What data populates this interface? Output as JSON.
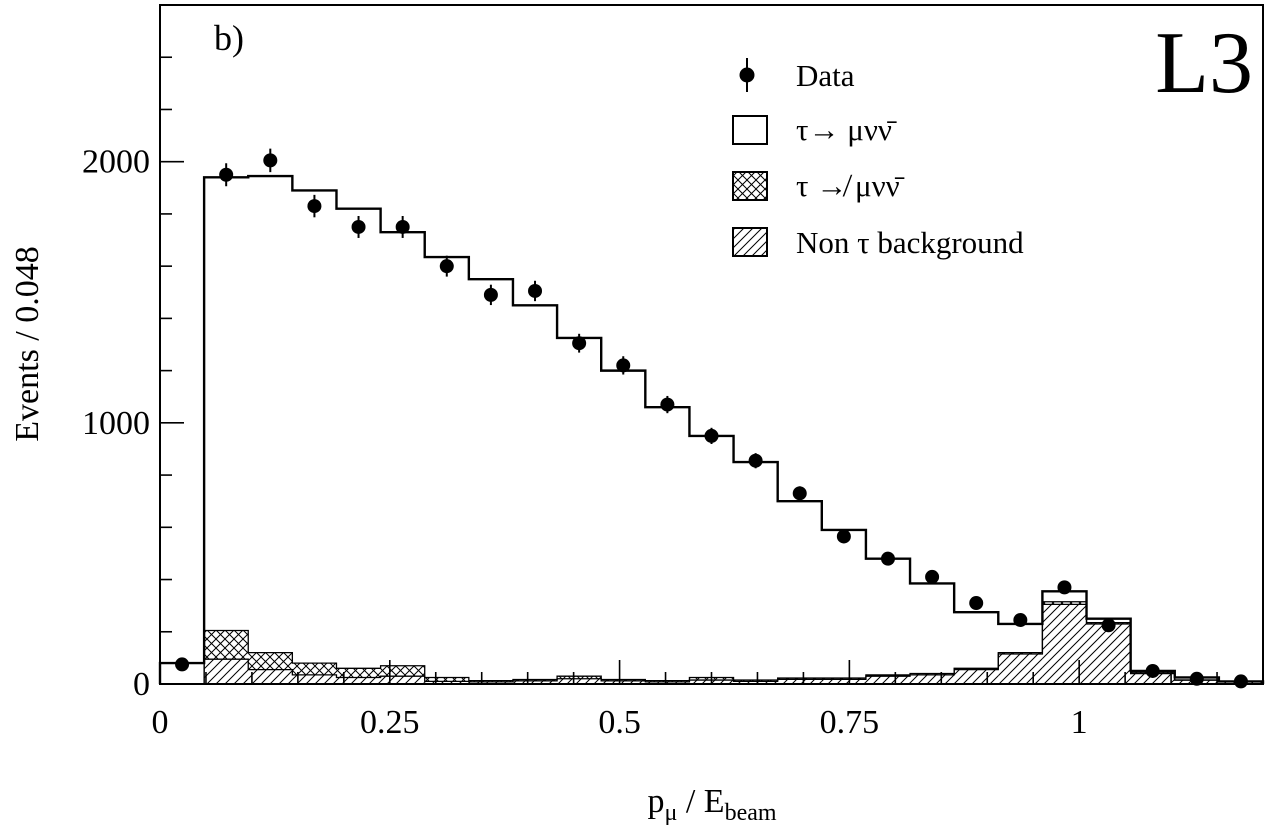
{
  "chart_data": {
    "type": "histogram",
    "panel_label": "b)",
    "experiment_label": "L3",
    "xlabel": {
      "base": "p",
      "base_sub": "μ",
      "sep": " / ",
      "denom": "E",
      "denom_sub": "beam"
    },
    "ylabel": "Events / 0.048",
    "xlim": [
      0,
      1.2
    ],
    "ylim": [
      0,
      2600
    ],
    "x_ticks": [
      {
        "value": 0,
        "label": "0"
      },
      {
        "value": 0.25,
        "label": "0.25"
      },
      {
        "value": 0.5,
        "label": "0.5"
      },
      {
        "value": 0.75,
        "label": "0.75"
      },
      {
        "value": 1,
        "label": "1"
      }
    ],
    "y_ticks": [
      {
        "value": 0,
        "label": "0"
      },
      {
        "value": 1000,
        "label": "1000"
      },
      {
        "value": 2000,
        "label": "2000"
      }
    ],
    "legend": {
      "placement": "top-right",
      "entries": [
        {
          "key": "data",
          "label": "Data"
        },
        {
          "key": "signal",
          "label": "τ→ μνν̄"
        },
        {
          "key": "tau_bg",
          "label": "τ ↛ μνν̄"
        },
        {
          "key": "non_tau_bg",
          "label": "Non τ background"
        }
      ]
    },
    "bin_width": 0.048,
    "bin_edges": [
      0,
      0.048,
      0.096,
      0.144,
      0.192,
      0.24,
      0.288,
      0.336,
      0.384,
      0.432,
      0.48,
      0.528,
      0.576,
      0.624,
      0.672,
      0.72,
      0.768,
      0.816,
      0.864,
      0.912,
      0.96,
      1.008,
      1.056,
      1.104,
      1.152,
      1.2
    ],
    "series": [
      {
        "key": "signal",
        "name": "τ→ μνν̄",
        "style": "outline",
        "values": [
          80,
          1940,
          1945,
          1890,
          1820,
          1730,
          1635,
          1550,
          1450,
          1325,
          1200,
          1060,
          950,
          850,
          700,
          590,
          480,
          385,
          275,
          230,
          355,
          250,
          50,
          25,
          10
        ]
      },
      {
        "key": "tau_bg",
        "name": "τ ↛ μνν̄",
        "style": "crosshatch",
        "values": [
          0,
          110,
          65,
          45,
          35,
          40,
          15,
          5,
          5,
          10,
          5,
          5,
          10,
          5,
          5,
          5,
          5,
          5,
          5,
          5,
          10,
          5,
          5,
          0,
          0
        ]
      },
      {
        "key": "non_tau_bg",
        "name": "Non τ background",
        "style": "hatch",
        "values": [
          0,
          95,
          55,
          35,
          25,
          30,
          10,
          8,
          12,
          20,
          12,
          8,
          15,
          10,
          18,
          18,
          30,
          35,
          55,
          115,
          305,
          230,
          40,
          15,
          8
        ]
      },
      {
        "key": "data",
        "name": "Data",
        "style": "points",
        "x": [
          0.024,
          0.072,
          0.12,
          0.168,
          0.216,
          0.264,
          0.312,
          0.36,
          0.408,
          0.456,
          0.504,
          0.552,
          0.6,
          0.648,
          0.696,
          0.744,
          0.792,
          0.84,
          0.888,
          0.936,
          0.984,
          1.032,
          1.08,
          1.128,
          1.176
        ],
        "y": [
          75,
          1950,
          2005,
          1830,
          1750,
          1750,
          1600,
          1490,
          1505,
          1305,
          1220,
          1070,
          950,
          855,
          730,
          565,
          480,
          410,
          310,
          245,
          370,
          225,
          50,
          20,
          10
        ],
        "err": [
          9,
          44,
          45,
          43,
          42,
          42,
          40,
          39,
          39,
          36,
          35,
          33,
          31,
          29,
          27,
          24,
          22,
          20,
          18,
          16,
          19,
          15,
          7,
          5,
          3
        ]
      }
    ]
  }
}
